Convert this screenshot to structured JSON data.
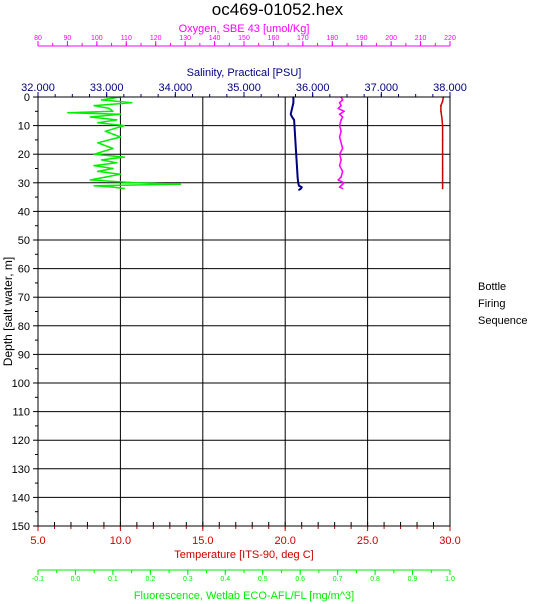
{
  "title": "oc469-01052.hex",
  "legend": {
    "title_line1": "Bottle",
    "title_line2": "Firing",
    "title_line3": "Sequence"
  },
  "colors": {
    "oxygen": "#ff00ff",
    "salinity": "#000080",
    "temperature": "#cc0000",
    "fluorescence": "#00ee00",
    "axis": "#000000"
  },
  "chart_data": {
    "type": "line",
    "y_axis": {
      "label": "Depth [salt water, m]",
      "range": [
        0,
        150
      ],
      "inverted": true,
      "ticks": [
        0,
        10,
        20,
        30,
        40,
        50,
        60,
        70,
        80,
        90,
        100,
        110,
        120,
        130,
        140,
        150
      ],
      "grid": true
    },
    "x_axes": [
      {
        "id": "oxygen",
        "label": "Oxygen, SBE 43 [umol/Kg]",
        "position": "top",
        "color": "#ff00ff",
        "range": [
          80,
          220
        ],
        "ticks": [
          80,
          90,
          100,
          110,
          120,
          130,
          140,
          150,
          160,
          170,
          180,
          190,
          200,
          210,
          220
        ],
        "tick_labels": [
          "80",
          "90",
          "100",
          "110",
          "120",
          "130",
          "140",
          "150",
          "160",
          "170",
          "180",
          "190",
          "200",
          "210",
          "220"
        ]
      },
      {
        "id": "salinity",
        "label": "Salinity, Practical [PSU]",
        "position": "top",
        "color": "#000080",
        "range": [
          32,
          38
        ],
        "ticks": [
          32,
          33,
          34,
          35,
          36,
          37,
          38
        ],
        "tick_labels": [
          "32.000",
          "33.000",
          "34.000",
          "35.000",
          "36.000",
          "37.000",
          "38.000"
        ]
      },
      {
        "id": "temperature",
        "label": "Temperature [ITS-90, deg C]",
        "position": "bottom",
        "color": "#cc0000",
        "range": [
          5,
          30
        ],
        "ticks": [
          5,
          10,
          15,
          20,
          25,
          30
        ],
        "tick_labels": [
          "5.0",
          "10.0",
          "15.0",
          "20.0",
          "25.0",
          "30.0"
        ],
        "grid": true
      },
      {
        "id": "fluorescence",
        "label": "Fluorescence, Wetlab ECO-AFL/FL [mg/m^3]",
        "position": "bottom",
        "color": "#00ee00",
        "range": [
          -0.1,
          1.0
        ],
        "ticks": [
          -0.1,
          0.0,
          0.1,
          0.2,
          0.3,
          0.4,
          0.5,
          0.6,
          0.7,
          0.8,
          0.9,
          1.0
        ],
        "tick_labels": [
          "-0.1",
          "0.0",
          "0.1",
          "0.2",
          "0.3",
          "0.4",
          "0.5",
          "0.6",
          "0.7",
          "0.8",
          "0.9",
          "1.0"
        ]
      }
    ],
    "series": [
      {
        "axis": "temperature",
        "points": [
          [
            29.6,
            0
          ],
          [
            29.55,
            1.5
          ],
          [
            29.45,
            3
          ],
          [
            29.45,
            5
          ],
          [
            29.5,
            7
          ],
          [
            29.55,
            10
          ],
          [
            29.55,
            15
          ],
          [
            29.55,
            20
          ],
          [
            29.55,
            25
          ],
          [
            29.55,
            30
          ],
          [
            29.55,
            32
          ]
        ]
      },
      {
        "axis": "salinity",
        "points": [
          [
            35.72,
            0
          ],
          [
            35.72,
            2
          ],
          [
            35.7,
            4
          ],
          [
            35.68,
            6
          ],
          [
            35.7,
            7
          ],
          [
            35.73,
            8
          ],
          [
            35.74,
            12
          ],
          [
            35.75,
            16
          ],
          [
            35.76,
            20
          ],
          [
            35.77,
            24
          ],
          [
            35.78,
            28
          ],
          [
            35.79,
            30
          ],
          [
            35.8,
            31
          ],
          [
            35.84,
            31.5
          ],
          [
            35.83,
            32
          ],
          [
            35.8,
            32.5
          ]
        ]
      },
      {
        "axis": "oxygen",
        "points": [
          [
            183,
            0
          ],
          [
            183.5,
            1
          ],
          [
            182.5,
            2
          ],
          [
            183,
            3
          ],
          [
            182,
            4
          ],
          [
            184,
            5
          ],
          [
            182.5,
            6
          ],
          [
            183.5,
            7
          ],
          [
            183,
            8
          ],
          [
            182.5,
            10
          ],
          [
            183,
            12
          ],
          [
            182.5,
            14
          ],
          [
            183,
            16
          ],
          [
            183.5,
            18
          ],
          [
            182.5,
            20
          ],
          [
            183,
            22
          ],
          [
            182.5,
            24
          ],
          [
            183.5,
            26
          ],
          [
            183,
            28
          ],
          [
            182,
            29
          ],
          [
            184,
            30
          ],
          [
            183,
            31
          ],
          [
            182.5,
            31.5
          ],
          [
            183.5,
            32
          ]
        ]
      },
      {
        "axis": "fluorescence",
        "points": [
          [
            0.12,
            0
          ],
          [
            0.07,
            1
          ],
          [
            0.15,
            2
          ],
          [
            0.05,
            3
          ],
          [
            0.09,
            4
          ],
          [
            0.1,
            5
          ],
          [
            -0.02,
            5.5
          ],
          [
            0.12,
            6
          ],
          [
            0.04,
            7
          ],
          [
            0.11,
            8
          ],
          [
            0.06,
            9
          ],
          [
            0.13,
            10
          ],
          [
            0.08,
            12
          ],
          [
            0.12,
            14
          ],
          [
            0.06,
            16
          ],
          [
            0.1,
            18
          ],
          [
            0.05,
            20
          ],
          [
            0.13,
            21
          ],
          [
            0.07,
            22
          ],
          [
            0.11,
            23
          ],
          [
            0.05,
            24
          ],
          [
            0.1,
            25
          ],
          [
            0.06,
            26
          ],
          [
            0.12,
            27
          ],
          [
            0.08,
            28
          ],
          [
            0.04,
            29
          ],
          [
            0.16,
            30
          ],
          [
            0.28,
            30.5
          ],
          [
            0.05,
            31
          ],
          [
            0.1,
            31.5
          ],
          [
            0.13,
            32
          ]
        ]
      }
    ]
  }
}
